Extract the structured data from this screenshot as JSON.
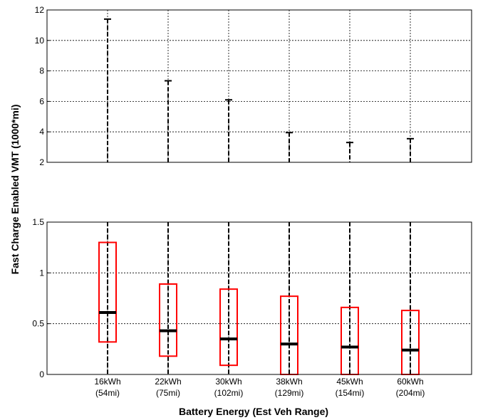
{
  "chart_data": {
    "type": "box",
    "xlabel": "Battery Energy (Est Veh Range)",
    "ylabel": "Fast Charge Enabled VMT (1000*mi)",
    "categories": [
      {
        "energy": "16kWh",
        "range": "(54mi)"
      },
      {
        "energy": "22kWh",
        "range": "(75mi)"
      },
      {
        "energy": "30kWh",
        "range": "(102mi)"
      },
      {
        "energy": "38kWh",
        "range": "(129mi)"
      },
      {
        "energy": "45kWh",
        "range": "(154mi)"
      },
      {
        "energy": "60kWh",
        "range": "(204mi)"
      }
    ],
    "panels": [
      {
        "id": "upper",
        "ylim": [
          2,
          12
        ],
        "yticks": [
          2,
          4,
          6,
          8,
          10,
          12
        ],
        "grid": true,
        "whisker_max": [
          11.4,
          7.35,
          6.1,
          3.95,
          3.3,
          3.55
        ]
      },
      {
        "id": "lower",
        "ylim": [
          0,
          1.5
        ],
        "yticks": [
          "0",
          "0.5",
          "1",
          "1.5"
        ],
        "grid": true,
        "boxes": [
          {
            "q1": 0.32,
            "median": 0.61,
            "q3": 1.3
          },
          {
            "q1": 0.18,
            "median": 0.43,
            "q3": 0.89
          },
          {
            "q1": 0.09,
            "median": 0.35,
            "q3": 0.84
          },
          {
            "q1": 0.0,
            "median": 0.3,
            "q3": 0.77
          },
          {
            "q1": 0.0,
            "median": 0.27,
            "q3": 0.66
          },
          {
            "q1": 0.0,
            "median": 0.24,
            "q3": 0.63
          }
        ]
      }
    ],
    "colors": {
      "box": "#ff0000",
      "median": "#000000",
      "whisker": "#000000",
      "grid": "#000000"
    }
  }
}
